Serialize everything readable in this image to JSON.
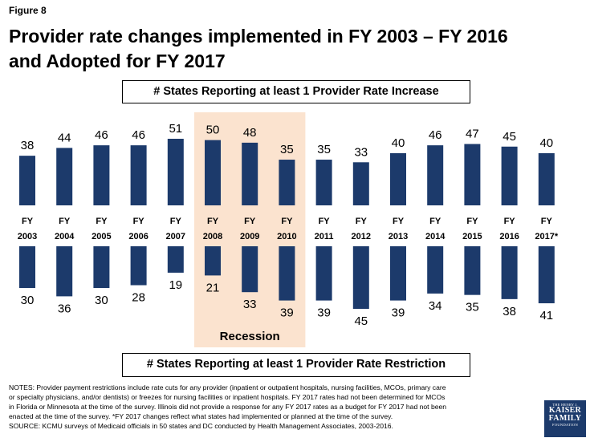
{
  "figure_label": "Figure 8",
  "title_line1": "Provider rate changes implemented in FY 2003 – FY 2016",
  "title_line2": "and Adopted for FY 2017",
  "colors": {
    "bar": "#1c3a6b",
    "recession_shade": "#fbe3cf",
    "text": "#000000"
  },
  "chart_data": {
    "type": "bar",
    "title": "Provider rate changes implemented in FY 2003 – FY 2016 and Adopted for FY 2017",
    "categories": [
      [
        "FY",
        "2003"
      ],
      [
        "FY",
        "2004"
      ],
      [
        "FY",
        "2005"
      ],
      [
        "FY",
        "2006"
      ],
      [
        "FY",
        "2007"
      ],
      [
        "FY",
        "2008"
      ],
      [
        "FY",
        "2009"
      ],
      [
        "FY",
        "2010"
      ],
      [
        "FY",
        "2011"
      ],
      [
        "FY",
        "2012"
      ],
      [
        "FY",
        "2013"
      ],
      [
        "FY",
        "2014"
      ],
      [
        "FY",
        "2015"
      ],
      [
        "FY",
        "2016"
      ],
      [
        "FY",
        "2017*"
      ]
    ],
    "series": [
      {
        "name": "# States Reporting at least 1 Provider Rate Increase",
        "direction": "up",
        "values": [
          38,
          44,
          46,
          46,
          51,
          50,
          48,
          35,
          35,
          33,
          40,
          46,
          47,
          45,
          40
        ]
      },
      {
        "name": "# States Reporting at least 1 Provider Rate Restriction",
        "direction": "down",
        "values": [
          30,
          36,
          30,
          28,
          19,
          21,
          33,
          39,
          39,
          45,
          39,
          34,
          35,
          38,
          41
        ]
      }
    ],
    "annotation": {
      "label": "Recession",
      "start_index": 5,
      "end_index": 7
    },
    "ylim": [
      0,
      51
    ]
  },
  "notes": [
    "NOTES: Provider payment restrictions include rate cuts for any provider (inpatient or outpatient hospitals, nursing facilities, MCOs, primary care",
    "or specialty physicians, and/or dentists) or freezes for nursing facilities or inpatient hospitals. FY 2017 rates had not been determined for MCOs",
    "in Florida or Minnesota at the time of the survey. Illinois did not provide a response for any FY 2017 rates as a budget for FY 2017 had not been",
    "enacted at the time of the survey. *FY 2017 changes reflect what states had implemented or planned at the time of the survey.",
    "SOURCE: KCMU surveys of Medicaid officials in 50 states and DC conducted by Health Management Associates, 2003-2016."
  ],
  "logo": {
    "line1": "THE HENRY J.",
    "line2": "KAISER",
    "line3": "FAMILY",
    "line4": "FOUNDATION"
  }
}
